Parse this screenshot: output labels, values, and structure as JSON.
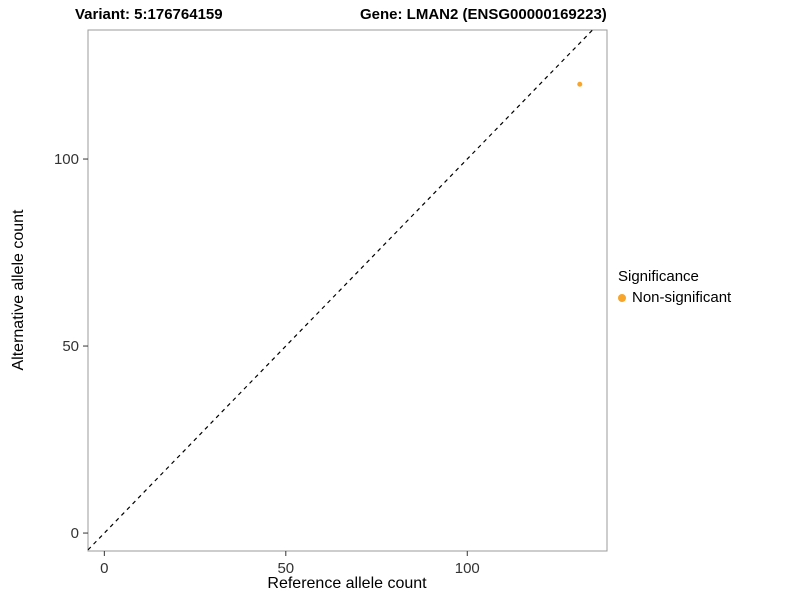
{
  "chart_data": {
    "type": "scatter",
    "title_left": "Variant: 5:176764159",
    "title_right": "Gene: LMAN2 (ENSG00000169223)",
    "xlabel": "Reference allele count",
    "ylabel": "Alternative allele count",
    "x_ticks": [
      0,
      50,
      100
    ],
    "y_ticks": [
      0,
      50,
      100
    ],
    "xlim": [
      -4.5,
      138.5
    ],
    "ylim": [
      -4.8,
      134.5
    ],
    "grid": false,
    "panel_border_color": "#9b9b9b",
    "tick_color": "#333333",
    "tick_label_color": "#333333",
    "reference_line": {
      "style": "dashed",
      "slope": 1,
      "intercept": 0,
      "color": "#000000"
    },
    "points": [
      {
        "x": 131,
        "y": 120,
        "series": "Non-significant",
        "color": "#F8A62B",
        "radius": 2.5
      }
    ],
    "legend": {
      "title": "Significance",
      "position": "right",
      "entries": [
        {
          "label": "Non-significant",
          "color": "#F8A62B"
        }
      ]
    }
  }
}
